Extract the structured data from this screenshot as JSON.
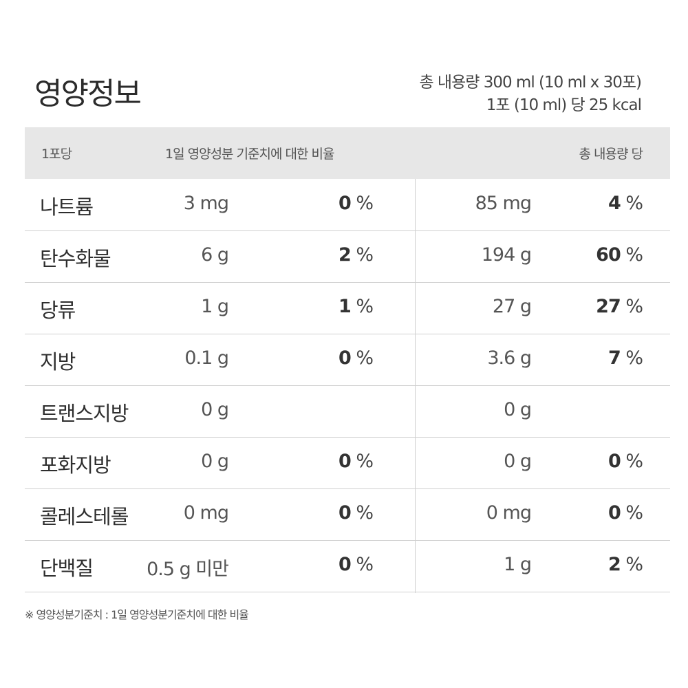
{
  "title": "영양정보",
  "summary": {
    "line1": "총 내용량 300 ml (10 ml x 30포)",
    "line2": "1포 (10 ml) 당 25 kcal"
  },
  "header": {
    "serving": "1포당",
    "daily_ratio": "1일 영양성분 기준치에 대한 비율",
    "total": "총 내용량 당"
  },
  "rows": [
    {
      "name": "나트륨",
      "amount": "3 mg",
      "pct": "0",
      "total_amount": "85 mg",
      "total_pct": "4"
    },
    {
      "name": "탄수화물",
      "amount": "6 g",
      "pct": "2",
      "total_amount": "194 g",
      "total_pct": "60"
    },
    {
      "name": "당류",
      "amount": "1 g",
      "pct": "1",
      "total_amount": "27 g",
      "total_pct": "27"
    },
    {
      "name": "지방",
      "amount": "0.1 g",
      "pct": "0",
      "total_amount": "3.6 g",
      "total_pct": "7"
    },
    {
      "name": "트랜스지방",
      "amount": "0 g",
      "pct": "",
      "total_amount": "0 g",
      "total_pct": ""
    },
    {
      "name": "포화지방",
      "amount": "0 g",
      "pct": "0",
      "total_amount": "0 g",
      "total_pct": "0"
    },
    {
      "name": "콜레스테롤",
      "amount": "0 mg",
      "pct": "0",
      "total_amount": "0 mg",
      "total_pct": "0"
    },
    {
      "name": "단백질",
      "amount": "0.5 g 미만",
      "pct": "0",
      "total_amount": "1 g",
      "total_pct": "2"
    }
  ],
  "percent_symbol": "%",
  "footnote": "※ 영양성분기준치 : 1일 영양성분기준치에 대한 비율"
}
